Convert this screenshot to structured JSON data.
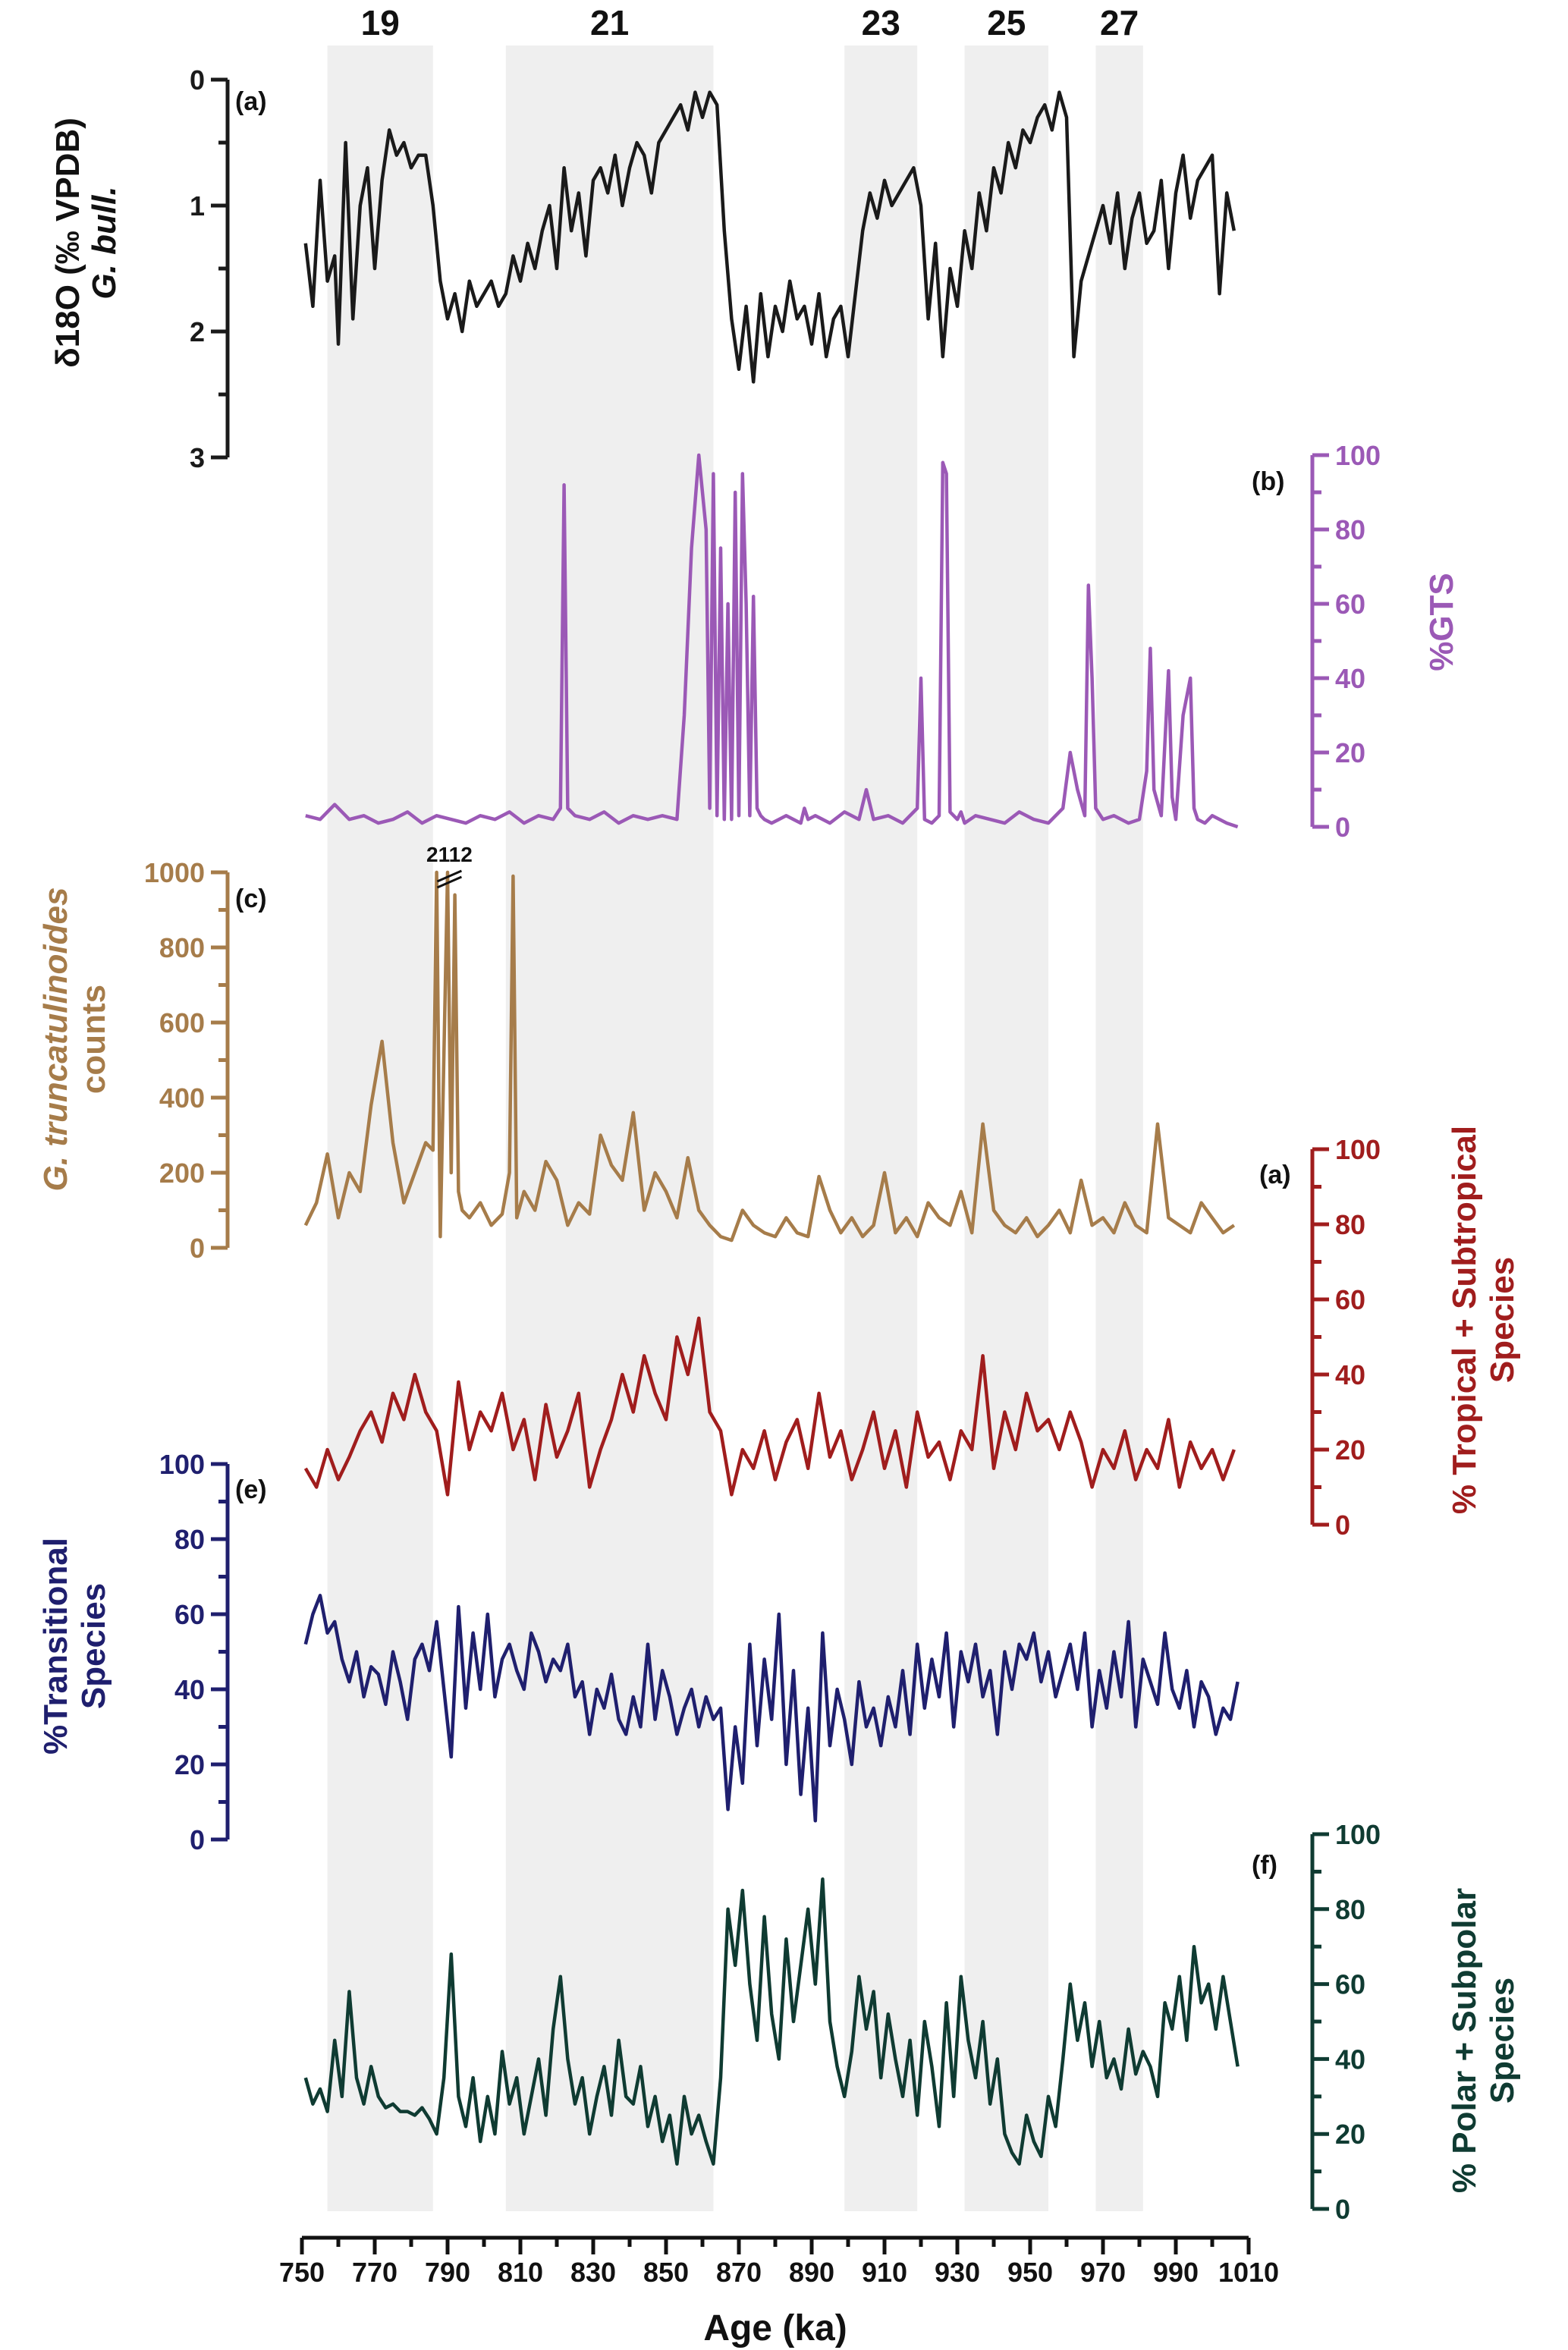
{
  "figure": {
    "x_axis": {
      "label": "Age (ka)",
      "range": [
        750,
        1010
      ],
      "ticks": [
        750,
        770,
        790,
        810,
        830,
        850,
        870,
        890,
        910,
        930,
        950,
        970,
        990,
        1010
      ]
    },
    "mis_bands": [
      {
        "label": "19",
        "start": 757,
        "end": 786
      },
      {
        "label": "21",
        "start": 806,
        "end": 863
      },
      {
        "label": "23",
        "start": 899,
        "end": 919
      },
      {
        "label": "25",
        "start": 932,
        "end": 955
      },
      {
        "label": "27",
        "start": 968,
        "end": 981
      }
    ],
    "break_label": "2112"
  },
  "chart_data": [
    {
      "type": "line",
      "id": "a",
      "panel_label": "(a)",
      "ylabel": "δ18O (‰ VPDB) G. bull.",
      "ylim": [
        0,
        3
      ],
      "yticks": [
        0,
        1,
        2,
        3
      ],
      "y_reversed": true,
      "color": "#1a1a1a",
      "x": [
        751,
        753,
        755,
        757,
        759,
        760,
        762,
        764,
        766,
        768,
        770,
        772,
        774,
        776,
        778,
        780,
        782,
        784,
        786,
        788,
        790,
        792,
        794,
        796,
        798,
        800,
        802,
        804,
        806,
        808,
        810,
        812,
        814,
        816,
        818,
        820,
        822,
        824,
        826,
        828,
        830,
        832,
        834,
        836,
        838,
        840,
        842,
        844,
        846,
        848,
        850,
        852,
        854,
        856,
        858,
        860,
        862,
        864,
        866,
        868,
        870,
        872,
        874,
        876,
        878,
        880,
        882,
        884,
        886,
        888,
        890,
        892,
        894,
        896,
        898,
        900,
        902,
        904,
        906,
        908,
        910,
        912,
        914,
        916,
        918,
        920,
        922,
        924,
        926,
        928,
        930,
        932,
        934,
        936,
        938,
        940,
        942,
        944,
        946,
        948,
        950,
        952,
        954,
        956,
        958,
        960,
        962,
        964,
        966,
        968,
        970,
        972,
        974,
        976,
        978,
        980,
        982,
        984,
        986,
        988,
        990,
        992,
        994,
        996,
        998,
        1000,
        1002,
        1004,
        1006
      ],
      "y": [
        1.3,
        1.8,
        0.8,
        1.6,
        1.4,
        2.1,
        0.5,
        1.9,
        1.0,
        0.7,
        1.5,
        0.8,
        0.4,
        0.6,
        0.5,
        0.7,
        0.6,
        0.6,
        1.0,
        1.6,
        1.9,
        1.7,
        2.0,
        1.6,
        1.8,
        1.7,
        1.6,
        1.8,
        1.7,
        1.4,
        1.6,
        1.3,
        1.5,
        1.2,
        1.0,
        1.5,
        0.7,
        1.2,
        0.9,
        1.4,
        0.8,
        0.7,
        0.9,
        0.6,
        1.0,
        0.7,
        0.5,
        0.6,
        0.9,
        0.5,
        0.4,
        0.3,
        0.2,
        0.4,
        0.1,
        0.3,
        0.1,
        0.2,
        1.2,
        1.9,
        2.3,
        1.8,
        2.4,
        1.7,
        2.2,
        1.8,
        2.0,
        1.6,
        1.9,
        1.8,
        2.1,
        1.7,
        2.2,
        1.9,
        1.8,
        2.2,
        1.7,
        1.2,
        0.9,
        1.1,
        0.8,
        1.0,
        0.9,
        0.8,
        0.7,
        1.0,
        1.9,
        1.3,
        2.2,
        1.5,
        1.8,
        1.2,
        1.5,
        0.9,
        1.2,
        0.7,
        0.9,
        0.5,
        0.7,
        0.4,
        0.5,
        0.3,
        0.2,
        0.4,
        0.1,
        0.3,
        2.2,
        1.6,
        1.4,
        1.2,
        1.0,
        1.3,
        0.9,
        1.5,
        1.1,
        0.9,
        1.3,
        1.2,
        0.8,
        1.5,
        0.9,
        0.6,
        1.1,
        0.8,
        0.7,
        0.6,
        1.7,
        0.9,
        1.2
      ]
    },
    {
      "type": "line",
      "id": "b",
      "panel_label": "(b)",
      "ylabel": "%GTS",
      "ylim": [
        0,
        100
      ],
      "yticks": [
        0,
        20,
        40,
        60,
        80,
        100
      ],
      "color": "#9b59b6",
      "x": [
        751,
        755,
        759,
        763,
        767,
        771,
        775,
        779,
        783,
        787,
        791,
        795,
        799,
        803,
        807,
        811,
        815,
        819,
        821,
        822,
        823,
        825,
        829,
        833,
        837,
        841,
        845,
        849,
        853,
        855,
        857,
        859,
        861,
        862,
        863,
        864,
        865,
        866,
        867,
        868,
        869,
        870,
        871,
        872,
        873,
        874,
        875,
        876,
        877,
        879,
        881,
        883,
        885,
        887,
        888,
        889,
        891,
        895,
        899,
        903,
        905,
        907,
        911,
        915,
        919,
        920,
        921,
        923,
        925,
        926,
        927,
        928,
        929,
        930,
        931,
        932,
        935,
        939,
        943,
        947,
        951,
        955,
        959,
        961,
        963,
        965,
        966,
        967,
        968,
        970,
        973,
        977,
        980,
        982,
        983,
        984,
        986,
        988,
        989,
        990,
        992,
        994,
        995,
        996,
        998,
        1000,
        1004,
        1007
      ],
      "y": [
        3,
        2,
        6,
        2,
        3,
        1,
        2,
        4,
        1,
        3,
        2,
        1,
        3,
        2,
        4,
        1,
        3,
        2,
        5,
        92,
        5,
        3,
        2,
        4,
        1,
        3,
        2,
        3,
        2,
        30,
        75,
        100,
        80,
        5,
        95,
        3,
        75,
        2,
        60,
        2,
        90,
        3,
        95,
        60,
        3,
        62,
        5,
        3,
        2,
        1,
        2,
        3,
        2,
        1,
        5,
        2,
        3,
        1,
        4,
        2,
        10,
        2,
        3,
        1,
        5,
        40,
        2,
        1,
        3,
        98,
        95,
        4,
        3,
        2,
        4,
        1,
        3,
        2,
        1,
        4,
        2,
        1,
        5,
        20,
        10,
        3,
        65,
        40,
        5,
        2,
        3,
        1,
        2,
        15,
        48,
        10,
        3,
        42,
        8,
        2,
        30,
        40,
        5,
        2,
        1,
        3,
        1,
        0
      ]
    },
    {
      "type": "line",
      "id": "c",
      "panel_label": "(c)",
      "ylabel": "G. truncatulinoides counts",
      "ylim": [
        0,
        1000
      ],
      "yticks": [
        0,
        200,
        400,
        600,
        800,
        1000
      ],
      "color": "#a67c4a",
      "x": [
        751,
        754,
        757,
        760,
        763,
        766,
        769,
        772,
        775,
        778,
        781,
        784,
        786,
        787,
        788,
        790,
        791,
        792,
        793,
        794,
        796,
        799,
        802,
        805,
        807,
        808,
        809,
        811,
        814,
        817,
        820,
        823,
        826,
        829,
        832,
        835,
        838,
        841,
        844,
        847,
        850,
        853,
        856,
        859,
        862,
        865,
        868,
        871,
        874,
        877,
        880,
        883,
        886,
        889,
        892,
        895,
        898,
        901,
        904,
        907,
        910,
        913,
        916,
        919,
        922,
        925,
        928,
        931,
        934,
        937,
        940,
        943,
        946,
        949,
        952,
        955,
        958,
        961,
        964,
        967,
        970,
        973,
        976,
        979,
        982,
        985,
        988,
        991,
        994,
        997,
        1000,
        1003,
        1006
      ],
      "y": [
        60,
        120,
        250,
        80,
        200,
        150,
        380,
        550,
        280,
        120,
        200,
        280,
        260,
        1000,
        30,
        1000,
        200,
        940,
        150,
        100,
        80,
        120,
        60,
        90,
        200,
        990,
        80,
        150,
        100,
        230,
        180,
        60,
        120,
        90,
        300,
        220,
        180,
        360,
        100,
        200,
        150,
        80,
        240,
        100,
        60,
        30,
        20,
        100,
        60,
        40,
        30,
        80,
        40,
        30,
        190,
        100,
        40,
        80,
        30,
        60,
        200,
        40,
        80,
        30,
        120,
        80,
        60,
        150,
        40,
        330,
        100,
        60,
        40,
        80,
        30,
        60,
        100,
        40,
        180,
        60,
        80,
        40,
        120,
        60,
        40,
        330,
        80,
        60,
        40,
        120,
        80,
        40,
        60
      ]
    },
    {
      "type": "line",
      "id": "d",
      "panel_label": "(a)",
      "ylabel": "% Tropical + Subtropical Species",
      "ylim": [
        0,
        100
      ],
      "yticks": [
        0,
        20,
        40,
        60,
        80,
        100
      ],
      "color": "#a01d1d",
      "x": [
        751,
        754,
        757,
        760,
        763,
        766,
        769,
        772,
        775,
        778,
        781,
        784,
        787,
        790,
        793,
        796,
        799,
        802,
        805,
        808,
        811,
        814,
        817,
        820,
        823,
        826,
        829,
        832,
        835,
        838,
        841,
        844,
        847,
        850,
        853,
        856,
        859,
        862,
        865,
        868,
        871,
        874,
        877,
        880,
        883,
        886,
        889,
        892,
        895,
        898,
        901,
        904,
        907,
        910,
        913,
        916,
        919,
        922,
        925,
        928,
        931,
        934,
        937,
        940,
        943,
        946,
        949,
        952,
        955,
        958,
        961,
        964,
        967,
        970,
        973,
        976,
        979,
        982,
        985,
        988,
        991,
        994,
        997,
        1000,
        1003,
        1006
      ],
      "y": [
        15,
        10,
        20,
        12,
        18,
        25,
        30,
        22,
        35,
        28,
        40,
        30,
        25,
        8,
        38,
        20,
        30,
        25,
        35,
        20,
        28,
        12,
        32,
        18,
        25,
        35,
        10,
        20,
        28,
        40,
        30,
        45,
        35,
        28,
        50,
        40,
        55,
        30,
        25,
        8,
        20,
        15,
        25,
        12,
        22,
        28,
        15,
        35,
        18,
        25,
        12,
        20,
        30,
        15,
        25,
        10,
        30,
        18,
        22,
        12,
        25,
        20,
        45,
        15,
        30,
        20,
        35,
        25,
        28,
        20,
        30,
        22,
        10,
        20,
        15,
        25,
        12,
        20,
        15,
        28,
        10,
        22,
        15,
        20,
        12,
        20
      ]
    },
    {
      "type": "line",
      "id": "e",
      "panel_label": "(e)",
      "ylabel": "%Transitional Species",
      "ylim": [
        0,
        100
      ],
      "yticks": [
        0,
        20,
        40,
        60,
        80,
        100
      ],
      "color": "#1f1f6e",
      "x": [
        751,
        753,
        755,
        757,
        759,
        761,
        763,
        765,
        767,
        769,
        771,
        773,
        775,
        777,
        779,
        781,
        783,
        785,
        787,
        789,
        791,
        793,
        795,
        797,
        799,
        801,
        803,
        805,
        807,
        809,
        811,
        813,
        815,
        817,
        819,
        821,
        823,
        825,
        827,
        829,
        831,
        833,
        835,
        837,
        839,
        841,
        843,
        845,
        847,
        849,
        851,
        853,
        855,
        857,
        859,
        861,
        863,
        865,
        867,
        869,
        871,
        873,
        875,
        877,
        879,
        881,
        883,
        885,
        887,
        889,
        891,
        893,
        895,
        897,
        899,
        901,
        903,
        905,
        907,
        909,
        911,
        913,
        915,
        917,
        919,
        921,
        923,
        925,
        927,
        929,
        931,
        933,
        935,
        937,
        939,
        941,
        943,
        945,
        947,
        949,
        951,
        953,
        955,
        957,
        959,
        961,
        963,
        965,
        967,
        969,
        971,
        973,
        975,
        977,
        979,
        981,
        983,
        985,
        987,
        989,
        991,
        993,
        995,
        997,
        999,
        1001,
        1003,
        1005,
        1007
      ],
      "y": [
        52,
        60,
        65,
        55,
        58,
        48,
        42,
        50,
        38,
        46,
        44,
        36,
        50,
        42,
        32,
        48,
        52,
        45,
        58,
        40,
        22,
        62,
        35,
        55,
        40,
        60,
        38,
        48,
        52,
        45,
        40,
        55,
        50,
        42,
        48,
        45,
        52,
        38,
        42,
        28,
        40,
        35,
        44,
        32,
        28,
        38,
        30,
        52,
        32,
        45,
        38,
        28,
        35,
        40,
        30,
        38,
        32,
        35,
        8,
        30,
        15,
        52,
        25,
        48,
        32,
        60,
        20,
        45,
        12,
        35,
        5,
        55,
        25,
        40,
        32,
        20,
        42,
        30,
        35,
        25,
        38,
        30,
        45,
        28,
        52,
        35,
        48,
        38,
        55,
        30,
        50,
        42,
        52,
        38,
        45,
        28,
        50,
        40,
        52,
        48,
        55,
        42,
        50,
        38,
        45,
        52,
        40,
        55,
        30,
        45,
        35,
        50,
        38,
        58,
        30,
        48,
        42,
        36,
        55,
        40,
        35,
        45,
        30,
        42,
        38,
        28,
        35,
        32,
        42
      ]
    },
    {
      "type": "line",
      "id": "f",
      "panel_label": "(f)",
      "ylabel": "% Polar + Subpolar Species",
      "ylim": [
        0,
        100
      ],
      "yticks": [
        0,
        20,
        40,
        60,
        80,
        100
      ],
      "color": "#0f3b32",
      "x": [
        751,
        753,
        755,
        757,
        759,
        761,
        763,
        765,
        767,
        769,
        771,
        773,
        775,
        777,
        779,
        781,
        783,
        785,
        787,
        789,
        791,
        793,
        795,
        797,
        799,
        801,
        803,
        805,
        807,
        809,
        811,
        813,
        815,
        817,
        819,
        821,
        823,
        825,
        827,
        829,
        831,
        833,
        835,
        837,
        839,
        841,
        843,
        845,
        847,
        849,
        851,
        853,
        855,
        857,
        859,
        861,
        863,
        865,
        867,
        869,
        871,
        873,
        875,
        877,
        879,
        881,
        883,
        885,
        887,
        889,
        891,
        893,
        895,
        897,
        899,
        901,
        903,
        905,
        907,
        909,
        911,
        913,
        915,
        917,
        919,
        921,
        923,
        925,
        927,
        929,
        931,
        933,
        935,
        937,
        939,
        941,
        943,
        945,
        947,
        949,
        951,
        953,
        955,
        957,
        959,
        961,
        963,
        965,
        967,
        969,
        971,
        973,
        975,
        977,
        979,
        981,
        983,
        985,
        987,
        989,
        991,
        993,
        995,
        997,
        999,
        1001,
        1003,
        1005,
        1007
      ],
      "y": [
        35,
        28,
        32,
        26,
        45,
        30,
        58,
        35,
        28,
        38,
        30,
        27,
        28,
        26,
        26,
        25,
        27,
        24,
        20,
        35,
        68,
        30,
        22,
        35,
        18,
        30,
        20,
        42,
        28,
        35,
        20,
        30,
        40,
        25,
        48,
        62,
        40,
        28,
        35,
        20,
        30,
        38,
        25,
        45,
        30,
        28,
        38,
        22,
        30,
        18,
        25,
        12,
        30,
        20,
        25,
        18,
        12,
        35,
        80,
        65,
        85,
        60,
        45,
        78,
        52,
        40,
        72,
        50,
        65,
        80,
        60,
        88,
        50,
        38,
        30,
        42,
        62,
        48,
        58,
        35,
        52,
        40,
        30,
        45,
        25,
        50,
        38,
        22,
        55,
        30,
        62,
        45,
        35,
        50,
        28,
        40,
        20,
        15,
        12,
        25,
        18,
        14,
        30,
        22,
        40,
        60,
        45,
        55,
        38,
        50,
        35,
        40,
        32,
        48,
        36,
        42,
        38,
        30,
        55,
        48,
        62,
        45,
        70,
        55,
        60,
        48,
        62,
        50,
        38
      ]
    }
  ]
}
